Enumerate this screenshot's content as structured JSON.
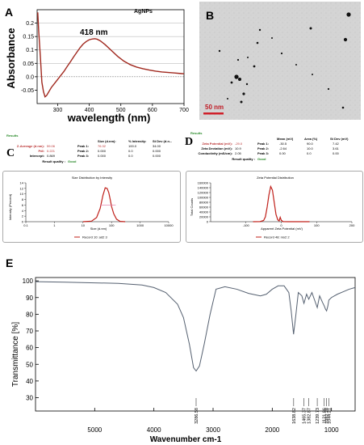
{
  "panel_letters": {
    "a": "A",
    "b": "B",
    "c": "C",
    "d": "D",
    "e": "E"
  },
  "chart_data": [
    {
      "type": "line",
      "panel": "A",
      "title": "AgNPs",
      "annotation": "418 nm",
      "xlabel": "wavelength (nm)",
      "ylabel": "Absorbance",
      "xlim": [
        235,
        700
      ],
      "ylim": [
        -0.1,
        0.25
      ],
      "xticks": [
        300,
        400,
        500,
        600,
        700
      ],
      "yticks": [
        -0.05,
        0.0,
        0.05,
        0.1,
        0.15,
        0.2
      ],
      "ytick_labels": [
        "-0.05",
        "0.0",
        "0.05",
        "0.1",
        "0.15",
        "0.2"
      ],
      "gridlines_y": [
        0.05,
        0.1,
        0.15,
        0.2
      ],
      "series": [
        {
          "color": "#a0281e",
          "x": [
            237,
            240,
            245,
            250,
            255,
            260,
            265,
            270,
            275,
            280,
            290,
            300,
            310,
            320,
            330,
            340,
            350,
            360,
            370,
            380,
            390,
            400,
            410,
            418,
            425,
            435,
            450,
            470,
            490,
            510,
            530,
            550,
            570,
            590,
            610,
            630,
            650,
            670,
            690,
            700
          ],
          "y": [
            0.24,
            0.17,
            0.08,
            -0.02,
            -0.055,
            -0.075,
            -0.07,
            -0.06,
            -0.05,
            -0.04,
            -0.025,
            -0.01,
            0.005,
            0.02,
            0.038,
            0.055,
            0.073,
            0.09,
            0.107,
            0.121,
            0.131,
            0.138,
            0.141,
            0.142,
            0.14,
            0.134,
            0.12,
            0.098,
            0.076,
            0.058,
            0.045,
            0.036,
            0.03,
            0.025,
            0.021,
            0.018,
            0.016,
            0.014,
            0.012,
            0.011
          ]
        }
      ]
    },
    {
      "type": "line",
      "panel": "C",
      "title": "Size Distribution by Intensity",
      "xlabel": "Size (d.nm)",
      "ylabel": "Intensity (Percent)",
      "xscale": "log",
      "xticks": [
        0.1,
        1,
        10,
        100,
        1000,
        10000
      ],
      "xtick_labels": [
        "0.1",
        "1",
        "10",
        "100",
        "1000",
        "10000"
      ],
      "ylim": [
        0,
        14
      ],
      "yticks": [
        0,
        2,
        4,
        6,
        8,
        10,
        12,
        14
      ],
      "legend": "Record 10: ad2 3",
      "series": [
        {
          "name": "Record 10: ad2 3",
          "color": "#c0201a",
          "x": [
            10,
            20,
            30,
            40,
            50,
            60,
            70,
            80,
            90,
            100,
            120,
            150,
            200,
            300
          ],
          "y": [
            0,
            0.2,
            1.5,
            4.8,
            9.5,
            12.2,
            12.0,
            10.5,
            8.0,
            5.5,
            2.8,
            0.9,
            0.1,
            0
          ]
        }
      ]
    },
    {
      "type": "line",
      "panel": "D",
      "title": "Zeta Potential Distribution",
      "xlabel": "Apparent Zeta Potential (mV)",
      "ylabel": "Total Counts",
      "xlim": [
        -200,
        200
      ],
      "xticks": [
        -100,
        0,
        100,
        200
      ],
      "ylim": [
        0,
        160000
      ],
      "yticks": [
        0,
        20000,
        40000,
        60000,
        80000,
        100000,
        120000,
        140000,
        160000
      ],
      "legend": "Record 48: nio2 2",
      "series": [
        {
          "name": "Record 48: nio2 2",
          "color": "#c0201a",
          "x": [
            -80,
            -60,
            -50,
            -45,
            -40,
            -35,
            -30,
            -25,
            -20,
            -15,
            -10,
            -6,
            -3,
            0,
            5,
            20,
            80
          ],
          "y": [
            0,
            500,
            5000,
            20000,
            60000,
            110000,
            145000,
            130000,
            80000,
            30000,
            8000,
            3000,
            18000,
            6000,
            500,
            0,
            0
          ]
        }
      ]
    },
    {
      "type": "line",
      "panel": "E",
      "xlabel": "Wavenumber cm-1",
      "ylabel": "Transmittance [%]",
      "xlim": [
        6000,
        600
      ],
      "xticks": [
        5000,
        4000,
        3000,
        2000,
        1000
      ],
      "ylim": [
        25,
        100
      ],
      "yticks": [
        30,
        40,
        50,
        60,
        70,
        80,
        90,
        100
      ],
      "peak_labels": [
        "3286.58",
        "1638.82",
        "1465.37",
        "1382.87",
        "1239.73",
        "1121.86",
        "1082.28",
        "1044.21"
      ],
      "peaks_x": [
        3286.58,
        1638.82,
        1465.37,
        1382.87,
        1239.73,
        1121.86,
        1082.28,
        1044.21
      ],
      "series": [
        {
          "color": "#556070",
          "x": [
            6000,
            5500,
            5000,
            4600,
            4200,
            4000,
            3800,
            3600,
            3500,
            3400,
            3330,
            3286,
            3230,
            3150,
            3050,
            2950,
            2800,
            2600,
            2400,
            2200,
            2100,
            2000,
            1900,
            1800,
            1720,
            1680,
            1640,
            1600,
            1560,
            1500,
            1465,
            1420,
            1383,
            1330,
            1280,
            1240,
            1200,
            1150,
            1122,
            1100,
            1082,
            1060,
            1044,
            1000,
            900,
            800,
            700,
            600
          ],
          "y": [
            99.5,
            99.2,
            98.8,
            98.5,
            97.5,
            96,
            93,
            86,
            78,
            62,
            48,
            46,
            49,
            62,
            80,
            95,
            96.5,
            95,
            92.5,
            91,
            92,
            95,
            97,
            97,
            93,
            82,
            68,
            80,
            93,
            91,
            86.5,
            92,
            89,
            93,
            88,
            84,
            91,
            87,
            85,
            83,
            82,
            85,
            88.5,
            90,
            92,
            93.5,
            95,
            96
          ]
        }
      ]
    }
  ],
  "table_c": {
    "heading": "Results",
    "col_size": "Size (d.nm):",
    "col_intensity": "% Intensity:",
    "col_stdev": "St Dev (d.n...",
    "z_label": "Z-Average (d.nm):",
    "z_value": "59.06",
    "pdi_label": "PdI:",
    "pdi_value": "0.221",
    "intercept_label": "Intercept:",
    "intercept_value": "0.869",
    "rq_label": "Result quality :",
    "rq_value": "Good",
    "peaks": [
      {
        "label": "Peak 1:",
        "size": "76.32",
        "intensity": "100.0",
        "stdev": "34.00"
      },
      {
        "label": "Peak 2:",
        "size": "0.000",
        "intensity": "0.0",
        "stdev": "0.000"
      },
      {
        "label": "Peak 3:",
        "size": "0.000",
        "intensity": "0.0",
        "stdev": "0.000"
      }
    ]
  },
  "table_d": {
    "heading": "Results",
    "col_mean": "Mean (mV)",
    "col_area": "Area (%)",
    "col_stdev": "St Dev (mV)",
    "zp_label": "Zeta Potential (mV):",
    "zp_value": "-29.0",
    "zd_label": "Zeta Deviation (mV):",
    "zd_value": "10.9",
    "cond_label": "Conductivity (mS/cm):",
    "cond_value": "2.05",
    "rq_label": "Result quality :",
    "rq_value": "Good",
    "peaks": [
      {
        "label": "Peak 1:",
        "mean": "-30.5",
        "area": "90.0",
        "stdev": "7.42"
      },
      {
        "label": "Peak 2:",
        "mean": "-2.64",
        "area": "10.0",
        "stdev": "3.61"
      },
      {
        "label": "Peak 3:",
        "mean": "0.00",
        "area": "0.0",
        "stdev": "0.00"
      }
    ]
  },
  "tem": {
    "scale_label": "50 nm"
  },
  "colors": {
    "uv": "#a0281e",
    "dls": "#c0201a",
    "ftir": "#556070",
    "scale": "#d0202a"
  }
}
